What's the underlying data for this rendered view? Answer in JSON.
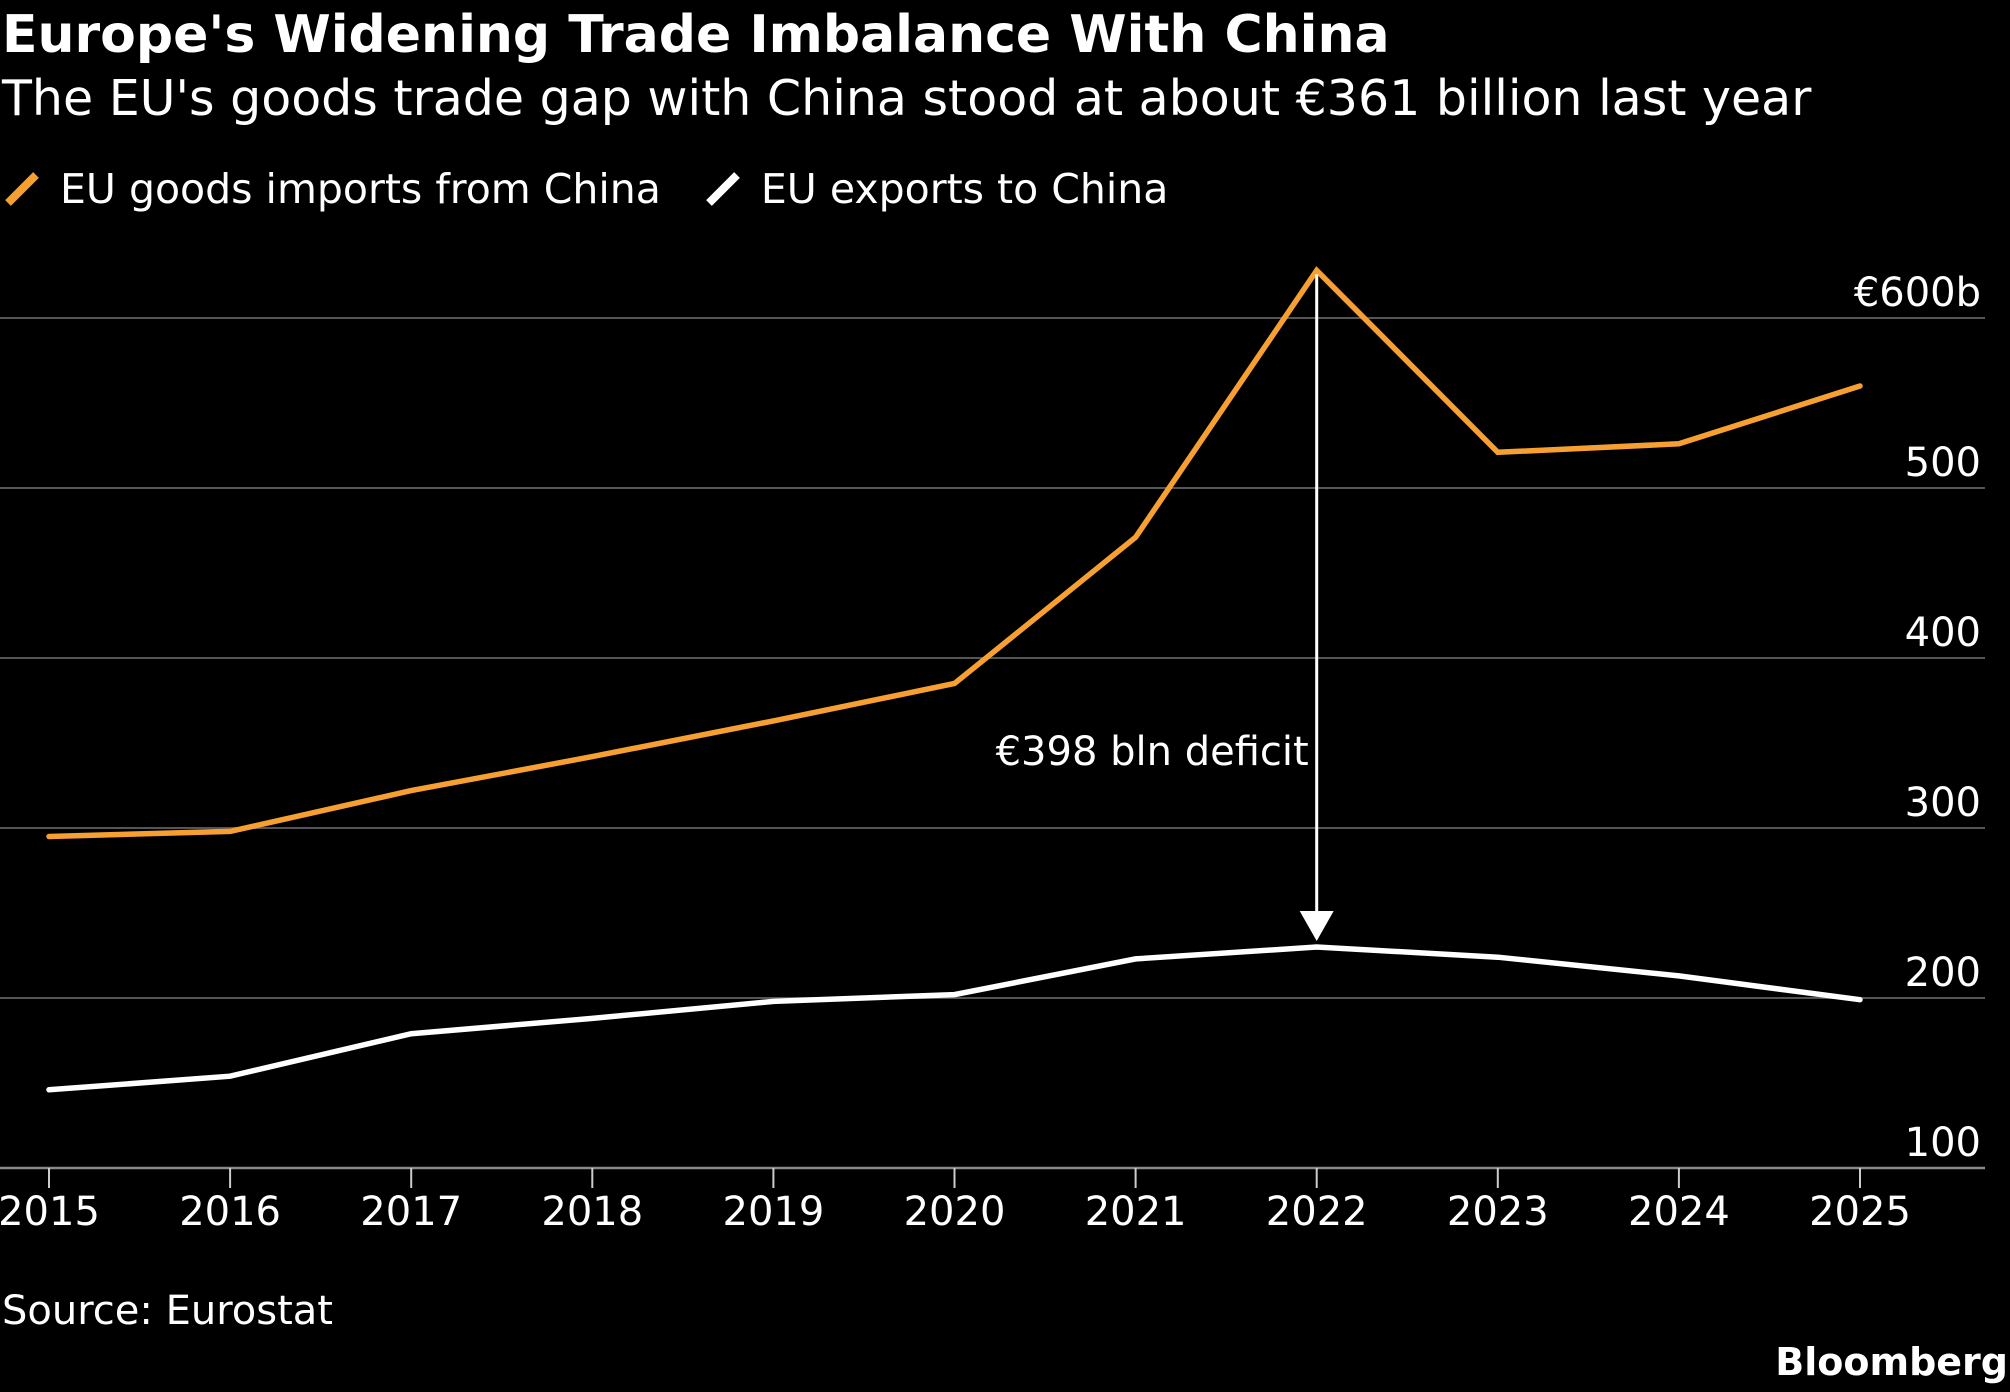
{
  "header": {
    "title": "Europe's Widening Trade Imbalance With China",
    "subtitle": "The EU's goods trade gap with China stood at about €361 billion last year"
  },
  "legend": [
    {
      "label": "EU goods imports from China",
      "color": "#f7a031"
    },
    {
      "label": "EU exports to China",
      "color": "#ffffff"
    }
  ],
  "chart_data": {
    "type": "line",
    "x": [
      2015,
      2016,
      2017,
      2018,
      2019,
      2020,
      2021,
      2022,
      2023,
      2024,
      2025
    ],
    "x_tick_labels": [
      "2015",
      "2016",
      "2017",
      "2018",
      "2019",
      "2020",
      "2021",
      "2022",
      "2023",
      "2024",
      "2025"
    ],
    "series": [
      {
        "name": "EU goods imports from China",
        "color": "#f7a031",
        "values": [
          295,
          298,
          322,
          342,
          363,
          385,
          471,
          628,
          521,
          526,
          560
        ]
      },
      {
        "name": "EU exports to China",
        "color": "#ffffff",
        "values": [
          146,
          154,
          179,
          188,
          198,
          202,
          223,
          230,
          224,
          213,
          199
        ]
      }
    ],
    "ylim": [
      100,
      625
    ],
    "y_ticks": [
      100,
      200,
      300,
      400,
      500,
      600
    ],
    "y_tick_labels": [
      "100",
      "200",
      "300",
      "400",
      "500",
      "€600b"
    ],
    "y_axis_side": "right",
    "grid": true,
    "annotation": {
      "text": "€398 bln deficit",
      "x": 2022,
      "from": 628,
      "to": 230
    },
    "gridline_color": "#555555"
  },
  "footer": {
    "source": "Source: Eurostat",
    "brand": "Bloomberg"
  }
}
